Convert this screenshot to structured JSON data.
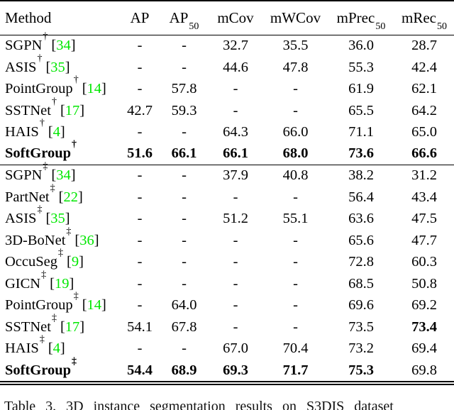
{
  "colors": {
    "cite_green": "#00E700",
    "text": "#000000",
    "background": "#FFFFFF",
    "rule": "#000000"
  },
  "table": {
    "columns": [
      {
        "key": "method",
        "text": "Method",
        "sub": ""
      },
      {
        "key": "ap",
        "text": "AP",
        "sub": ""
      },
      {
        "key": "ap50",
        "text": "AP",
        "sub": "50"
      },
      {
        "key": "mcov",
        "text": "mCov",
        "sub": ""
      },
      {
        "key": "mwcov",
        "text": "mWCov",
        "sub": ""
      },
      {
        "key": "mprec50",
        "text": "mPrec",
        "sub": "50"
      },
      {
        "key": "mrec50",
        "text": "mRec",
        "sub": "50"
      }
    ],
    "sections": [
      {
        "marker": "†",
        "rows": [
          {
            "method": "SGPN",
            "marker": "†",
            "cite": "34",
            "method_bold": false,
            "values": [
              "-",
              "-",
              "32.7",
              "35.5",
              "36.0",
              "28.7"
            ],
            "bold": [
              false,
              false,
              false,
              false,
              false,
              false
            ]
          },
          {
            "method": "ASIS",
            "marker": "†",
            "cite": "35",
            "method_bold": false,
            "values": [
              "-",
              "-",
              "44.6",
              "47.8",
              "55.3",
              "42.4"
            ],
            "bold": [
              false,
              false,
              false,
              false,
              false,
              false
            ]
          },
          {
            "method": "PointGroup",
            "marker": "†",
            "cite": "14",
            "method_bold": false,
            "values": [
              "-",
              "57.8",
              "-",
              "-",
              "61.9",
              "62.1"
            ],
            "bold": [
              false,
              false,
              false,
              false,
              false,
              false
            ]
          },
          {
            "method": "SSTNet",
            "marker": "†",
            "cite": "17",
            "method_bold": false,
            "values": [
              "42.7",
              "59.3",
              "-",
              "-",
              "65.5",
              "64.2"
            ],
            "bold": [
              false,
              false,
              false,
              false,
              false,
              false
            ]
          },
          {
            "method": "HAIS",
            "marker": "†",
            "cite": "4",
            "method_bold": false,
            "values": [
              "-",
              "-",
              "64.3",
              "66.0",
              "71.1",
              "65.0"
            ],
            "bold": [
              false,
              false,
              false,
              false,
              false,
              false
            ]
          },
          {
            "method": "SoftGroup",
            "marker": "†",
            "cite": "",
            "method_bold": true,
            "values": [
              "51.6",
              "66.1",
              "66.1",
              "68.0",
              "73.6",
              "66.6"
            ],
            "bold": [
              true,
              true,
              true,
              true,
              true,
              true
            ]
          }
        ]
      },
      {
        "marker": "‡",
        "rows": [
          {
            "method": "SGPN",
            "marker": "‡",
            "cite": "34",
            "method_bold": false,
            "values": [
              "-",
              "-",
              "37.9",
              "40.8",
              "38.2",
              "31.2"
            ],
            "bold": [
              false,
              false,
              false,
              false,
              false,
              false
            ]
          },
          {
            "method": "PartNet",
            "marker": "‡",
            "cite": "22",
            "method_bold": false,
            "values": [
              "-",
              "-",
              "-",
              "-",
              "56.4",
              "43.4"
            ],
            "bold": [
              false,
              false,
              false,
              false,
              false,
              false
            ]
          },
          {
            "method": "ASIS",
            "marker": "‡",
            "cite": "35",
            "method_bold": false,
            "values": [
              "-",
              "-",
              "51.2",
              "55.1",
              "63.6",
              "47.5"
            ],
            "bold": [
              false,
              false,
              false,
              false,
              false,
              false
            ]
          },
          {
            "method": "3D-BoNet",
            "marker": "‡",
            "cite": "36",
            "method_bold": false,
            "values": [
              "-",
              "-",
              "-",
              "-",
              "65.6",
              "47.7"
            ],
            "bold": [
              false,
              false,
              false,
              false,
              false,
              false
            ]
          },
          {
            "method": "OccuSeg",
            "marker": "‡",
            "cite": "9",
            "method_bold": false,
            "values": [
              "-",
              "-",
              "-",
              "-",
              "72.8",
              "60.3"
            ],
            "bold": [
              false,
              false,
              false,
              false,
              false,
              false
            ]
          },
          {
            "method": "GICN",
            "marker": "‡",
            "cite": "19",
            "method_bold": false,
            "values": [
              "-",
              "-",
              "-",
              "-",
              "68.5",
              "50.8"
            ],
            "bold": [
              false,
              false,
              false,
              false,
              false,
              false
            ]
          },
          {
            "method": "PointGroup",
            "marker": "‡",
            "cite": "14",
            "method_bold": false,
            "values": [
              "-",
              "64.0",
              "-",
              "-",
              "69.6",
              "69.2"
            ],
            "bold": [
              false,
              false,
              false,
              false,
              false,
              false
            ]
          },
          {
            "method": "SSTNet",
            "marker": "‡",
            "cite": "17",
            "method_bold": false,
            "values": [
              "54.1",
              "67.8",
              "-",
              "-",
              "73.5",
              "73.4"
            ],
            "bold": [
              false,
              false,
              false,
              false,
              false,
              true
            ]
          },
          {
            "method": "HAIS",
            "marker": "‡",
            "cite": "4",
            "method_bold": false,
            "values": [
              "-",
              "-",
              "67.0",
              "70.4",
              "73.2",
              "69.4"
            ],
            "bold": [
              false,
              false,
              false,
              false,
              false,
              false
            ]
          },
          {
            "method": "SoftGroup",
            "marker": "‡",
            "cite": "",
            "method_bold": true,
            "values": [
              "54.4",
              "68.9",
              "69.3",
              "71.7",
              "75.3",
              "69.8"
            ],
            "bold": [
              true,
              true,
              true,
              true,
              true,
              false
            ]
          }
        ]
      }
    ]
  },
  "caption": {
    "text": "Table 3. 3D instance segmentation results on S3DIS dataset"
  }
}
